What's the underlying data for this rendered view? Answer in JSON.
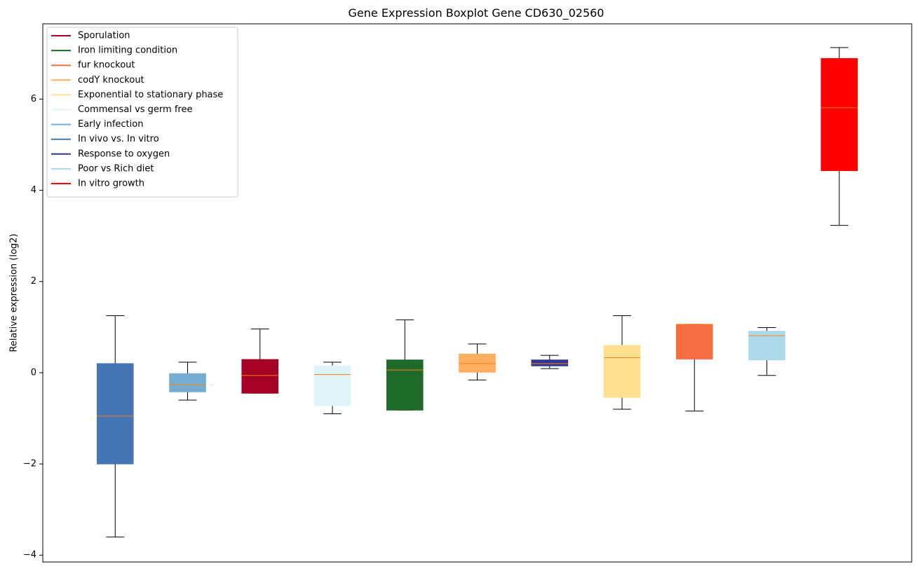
{
  "chart_data": {
    "type": "boxplot",
    "title": "Gene Expression Boxplot Gene CD630_02560",
    "xlabel": "",
    "ylabel": "Relative expression (log2)",
    "ylim": [
      -4.15,
      7.65
    ],
    "yticks": [
      -4,
      -2,
      0,
      2,
      4,
      6
    ],
    "grid": false,
    "legend_position": "top-left",
    "median_color": "#ff7f0e",
    "legend": [
      {
        "label": "Sporulation",
        "color": "#a50026"
      },
      {
        "label": "Iron limiting condition",
        "color": "#1f6b2c"
      },
      {
        "label": "fur knockout",
        "color": "#f46d43"
      },
      {
        "label": "codY knockout",
        "color": "#fdae61"
      },
      {
        "label": "Exponential to stationary phase",
        "color": "#fee090"
      },
      {
        "label": "Commensal vs germ free",
        "color": "#e0f3f8"
      },
      {
        "label": "Early infection",
        "color": "#74add1"
      },
      {
        "label": "In vivo vs. In vitro",
        "color": "#4575b4"
      },
      {
        "label": "Response to oxygen",
        "color": "#313695"
      },
      {
        "label": "Poor vs Rich diet",
        "color": "#abd9e9"
      },
      {
        "label": "In vitro growth",
        "color": "#ff0000"
      }
    ],
    "boxes": [
      {
        "color": "#4575b4",
        "whislo": -3.6,
        "q1": -2.0,
        "med": -0.95,
        "q3": 0.2,
        "whishi": 1.25
      },
      {
        "color": "#74add1",
        "whislo": -0.6,
        "q1": -0.42,
        "med": -0.27,
        "q3": -0.02,
        "whishi": 0.23
      },
      {
        "color": "#a50026",
        "whislo": -0.45,
        "q1": -0.45,
        "med": -0.06,
        "q3": 0.29,
        "whishi": 0.96
      },
      {
        "color": "#e0f3f8",
        "whislo": -0.9,
        "q1": -0.72,
        "med": -0.04,
        "q3": 0.15,
        "whishi": 0.23
      },
      {
        "color": "#1f6b2c",
        "whislo": -0.82,
        "q1": -0.82,
        "med": 0.06,
        "q3": 0.28,
        "whishi": 1.16
      },
      {
        "color": "#fdae61",
        "whislo": -0.16,
        "q1": 0.01,
        "med": 0.2,
        "q3": 0.41,
        "whishi": 0.63
      },
      {
        "color": "#313695",
        "whislo": 0.09,
        "q1": 0.15,
        "med": 0.2,
        "q3": 0.28,
        "whishi": 0.38
      },
      {
        "color": "#fee090",
        "whislo": -0.8,
        "q1": -0.54,
        "med": 0.33,
        "q3": 0.6,
        "whishi": 1.25
      },
      {
        "color": "#f46d43",
        "whislo": -0.84,
        "q1": 0.3,
        "med": 1.06,
        "q3": 1.06,
        "whishi": 1.06
      },
      {
        "color": "#abd9e9",
        "whislo": -0.06,
        "q1": 0.28,
        "med": 0.81,
        "q3": 0.91,
        "whishi": 0.99
      },
      {
        "color": "#ff0000",
        "whislo": 3.23,
        "q1": 4.43,
        "med": 5.81,
        "q3": 6.89,
        "whishi": 7.13
      }
    ]
  }
}
